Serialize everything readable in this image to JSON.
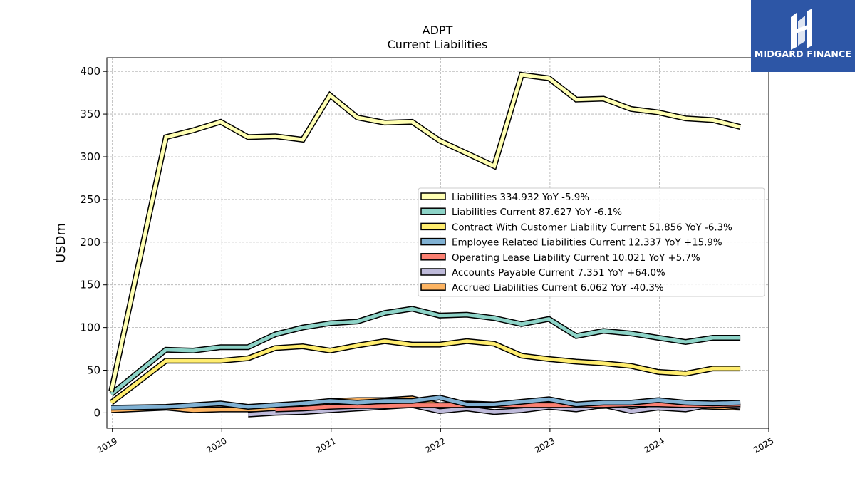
{
  "brand": {
    "name": "MIDGARD FINANCE",
    "color": "#2d56a6"
  },
  "chart_data": {
    "type": "line",
    "title": "ADPT",
    "subtitle": "Current  Liabilities",
    "ylabel": "USDm",
    "xlabel": "",
    "xlim": [
      2018.95,
      2025.0
    ],
    "ylim": [
      -18,
      416
    ],
    "yticks": [
      0,
      50,
      100,
      150,
      200,
      250,
      300,
      350,
      400
    ],
    "xticks": [
      2019,
      2020,
      2021,
      2022,
      2023,
      2024,
      2025
    ],
    "grid": true,
    "legend_position": "center-right",
    "x": [
      2018.99,
      2019.49,
      2019.74,
      2019.99,
      2020.24,
      2020.49,
      2020.74,
      2020.99,
      2021.24,
      2021.49,
      2021.74,
      2021.99,
      2022.24,
      2022.49,
      2022.74,
      2022.99,
      2023.24,
      2023.49,
      2023.74,
      2023.99,
      2024.24,
      2024.49,
      2024.74
    ],
    "series": [
      {
        "name": "Liabilities",
        "label": "Liabilities  334.932 YoY -5.9%",
        "color": "#ffffb3",
        "values": [
          25,
          323,
          331,
          341,
          323,
          324,
          320,
          372,
          346,
          340,
          341,
          319,
          304,
          289,
          396,
          392,
          367,
          368,
          356,
          352,
          345,
          343,
          335
        ]
      },
      {
        "name": "Liabilities Current",
        "label": "Liabilities Current  87.627 YoY -6.1%",
        "color": "#8dd3c7",
        "values": [
          22,
          74,
          73,
          77,
          77,
          92,
          100,
          105,
          107,
          117,
          122,
          114,
          115,
          111,
          104,
          110,
          90,
          96,
          93,
          88,
          83,
          88,
          88
        ]
      },
      {
        "name": "Contract With Customer Liability Current",
        "label": "Contract With Customer Liability Current  51.856 YoY -6.3%",
        "color": "#ffed6f",
        "values": [
          12,
          61,
          61,
          61,
          64,
          76,
          78,
          73,
          79,
          84,
          80,
          80,
          84,
          81,
          67,
          63,
          60,
          58,
          55,
          48,
          46,
          52,
          52
        ]
      },
      {
        "name": "Employee Related Liabilities Current",
        "label": "Employee Related Liabilities Current  12.337 YoY +15.9%",
        "color": "#80b1d3",
        "values": [
          6,
          7,
          9,
          11,
          7,
          9,
          11,
          14,
          12,
          14,
          14,
          18,
          10,
          10,
          13,
          16,
          10,
          12,
          12,
          15,
          12,
          11,
          12
        ]
      },
      {
        "name": "Operating Lease Liability Current",
        "label": "Operating Lease Liability Current  10.021 YoY +5.7%",
        "color": "#fb8072",
        "values": [
          null,
          null,
          null,
          null,
          null,
          4,
          5,
          7,
          8,
          8,
          9,
          9,
          9,
          9,
          9,
          9,
          9,
          9,
          10,
          10,
          9,
          9,
          10
        ]
      },
      {
        "name": "Accounts Payable Current",
        "label": "Accounts Payable Current  7.351 YoY +64.0%",
        "color": "#bebada",
        "values": [
          null,
          null,
          null,
          null,
          -2,
          0,
          1,
          3,
          5,
          7,
          9,
          2,
          5,
          1,
          3,
          7,
          4,
          9,
          2,
          6,
          4,
          10,
          7
        ]
      },
      {
        "name": "Accrued Liabilities Current",
        "label": "Accrued Liabilities Current  6.062 YoY -40.3%",
        "color": "#fdb462",
        "values": [
          3,
          6,
          3,
          4,
          4,
          4,
          5,
          14,
          15,
          15,
          17,
          9,
          11,
          10,
          10,
          10,
          7,
          8,
          10,
          9,
          8,
          7,
          6
        ]
      }
    ]
  }
}
